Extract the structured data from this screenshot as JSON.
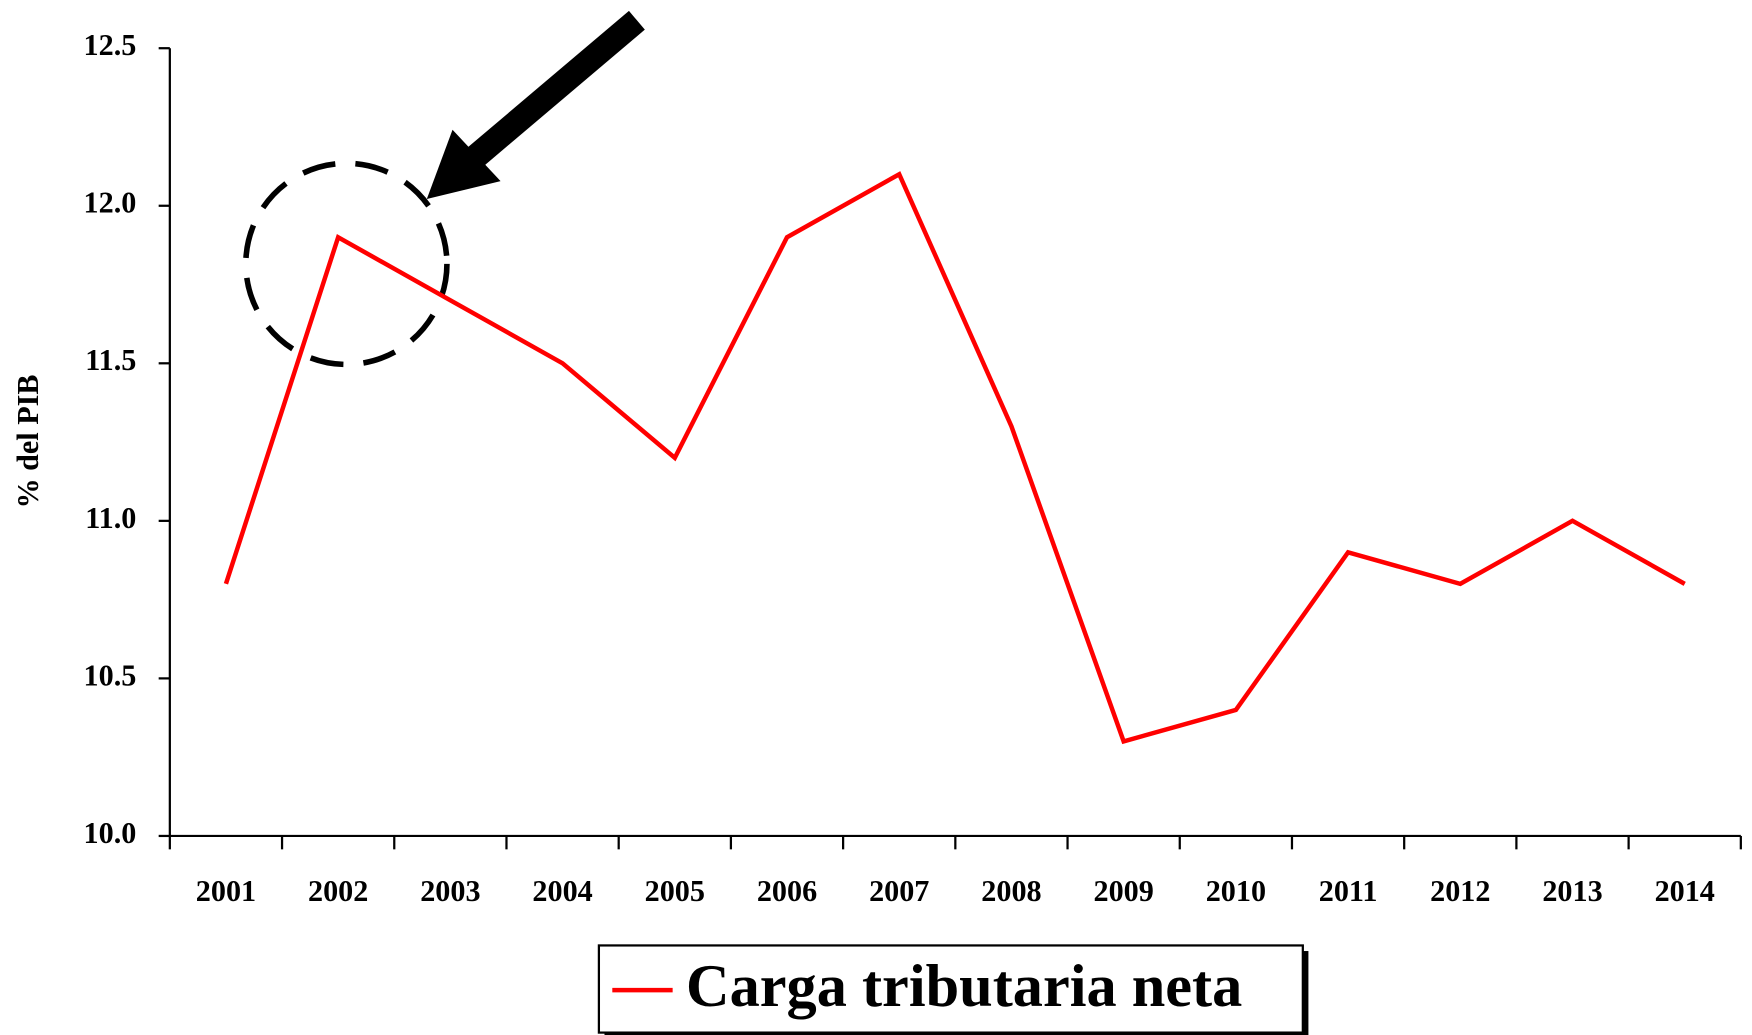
{
  "chart_data": {
    "type": "line",
    "y_label": "% del PIB",
    "categories": [
      "2001",
      "2002",
      "2003",
      "2004",
      "2005",
      "2006",
      "2007",
      "2008",
      "2009",
      "2010",
      "2011",
      "2012",
      "2013",
      "2014"
    ],
    "series": [
      {
        "name": "Carga tributaria neta",
        "color": "#ff0000",
        "values": [
          10.8,
          11.9,
          11.7,
          11.5,
          11.2,
          11.9,
          12.1,
          11.3,
          10.3,
          10.4,
          10.9,
          10.8,
          11.0,
          10.8
        ]
      }
    ],
    "ylim": [
      10,
      12.5
    ],
    "yticks": [
      {
        "value": 10,
        "label": "10.0"
      },
      10.5,
      {
        "value": 11,
        "label": "11.0"
      },
      11.5,
      {
        "value": 12,
        "label": "12.0"
      },
      12.5
    ],
    "legend": "bottom"
  }
}
